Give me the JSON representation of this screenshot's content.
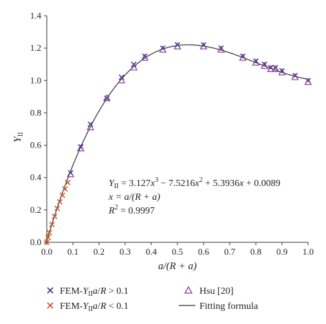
{
  "chart_data": {
    "type": "scatter",
    "xlabel": "a/(R + a)",
    "ylabel_main": "Y",
    "ylabel_sub": "II",
    "xlim": [
      0.0,
      1.0
    ],
    "ylim": [
      0.0,
      1.4
    ],
    "x_ticks": [
      "0.0",
      "0.1",
      "0.2",
      "0.3",
      "0.4",
      "0.5",
      "0.6",
      "0.7",
      "0.8",
      "0.9",
      "1.0"
    ],
    "y_ticks": [
      "0.0",
      "0.2",
      "0.4",
      "0.6",
      "0.8",
      "1.0",
      "1.2",
      "1.4"
    ],
    "grid": false,
    "annotation": {
      "eq1": {
        "a": "Y",
        "b": "II",
        "c": " = 3.127",
        "d": "x",
        "e": "3",
        "f": " − 7.5216",
        "g": "x",
        "h": "2",
        "i": " + 5.3936",
        "j": "x",
        "k": " + 0.0089"
      },
      "eq2": "x = a/(R + a)",
      "eq3": {
        "a": "R",
        "b": "2",
        "c": " = 0.9997"
      }
    },
    "series": [
      {
        "name": "FEM-Y_II a/R > 0.1",
        "legend": {
          "a": "FEM-",
          "b": "Y",
          "c": "II",
          "d": "a",
          "e": "/",
          "f": "R",
          "g": " > 0.1"
        },
        "marker": "x",
        "color": "#3a3a8c",
        "points": [
          [
            0.091,
            0.43
          ],
          [
            0.13,
            0.59
          ],
          [
            0.167,
            0.73
          ],
          [
            0.23,
            0.89
          ],
          [
            0.286,
            1.02
          ],
          [
            0.333,
            1.1
          ],
          [
            0.375,
            1.15
          ],
          [
            0.444,
            1.2
          ],
          [
            0.5,
            1.22
          ],
          [
            0.6,
            1.22
          ],
          [
            0.667,
            1.2
          ],
          [
            0.75,
            1.15
          ],
          [
            0.8,
            1.12
          ],
          [
            0.833,
            1.1
          ],
          [
            0.857,
            1.08
          ],
          [
            0.875,
            1.08
          ],
          [
            0.9,
            1.06
          ],
          [
            0.95,
            1.03
          ],
          [
            1.0,
            1.0
          ]
        ]
      },
      {
        "name": "FEM-Y_II a/R < 0.1",
        "legend": {
          "a": "FEM-",
          "b": "Y",
          "c": "II",
          "d": "a",
          "e": "/",
          "f": "R",
          "g": " < 0.1"
        },
        "marker": "x",
        "color": "#c8542a",
        "points": [
          [
            0.0,
            0.0
          ],
          [
            0.005,
            0.03
          ],
          [
            0.01,
            0.06
          ],
          [
            0.02,
            0.11
          ],
          [
            0.03,
            0.16
          ],
          [
            0.04,
            0.21
          ],
          [
            0.05,
            0.25
          ],
          [
            0.06,
            0.29
          ],
          [
            0.07,
            0.33
          ],
          [
            0.08,
            0.37
          ]
        ]
      },
      {
        "name": "Hsu [20]",
        "legend": {
          "a": "Hsu [20]"
        },
        "marker": "triangle",
        "color": "#8a3fa0",
        "points": [
          [
            0.091,
            0.42
          ],
          [
            0.13,
            0.58
          ],
          [
            0.167,
            0.71
          ],
          [
            0.23,
            0.89
          ],
          [
            0.286,
            1.0
          ],
          [
            0.333,
            1.08
          ],
          [
            0.375,
            1.14
          ],
          [
            0.444,
            1.19
          ],
          [
            0.5,
            1.21
          ],
          [
            0.6,
            1.21
          ],
          [
            0.667,
            1.19
          ],
          [
            0.75,
            1.14
          ],
          [
            0.8,
            1.11
          ],
          [
            0.833,
            1.09
          ],
          [
            0.857,
            1.07
          ],
          [
            0.875,
            1.07
          ],
          [
            0.9,
            1.05
          ],
          [
            0.95,
            1.02
          ],
          [
            1.0,
            0.99
          ]
        ]
      },
      {
        "name": "Fitting formula",
        "legend": {
          "a": "Fitting formula"
        },
        "marker": "line",
        "color": "#333333",
        "coefficients": [
          3.127,
          -7.5216,
          5.3936,
          0.0089
        ]
      }
    ]
  }
}
